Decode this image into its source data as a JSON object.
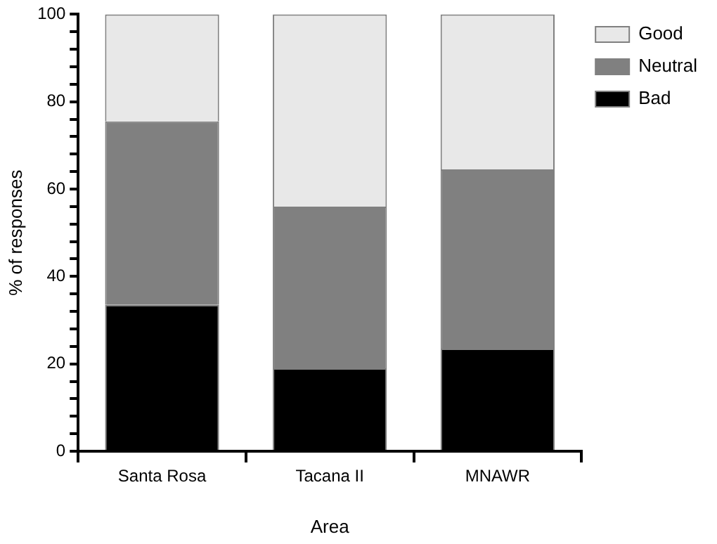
{
  "chart_data": {
    "type": "bar",
    "stacked": true,
    "xlabel": "Area",
    "ylabel": "% of responses",
    "categories": [
      "Santa Rosa",
      "Tacana II",
      "MNAWR"
    ],
    "series": [
      {
        "name": "Bad",
        "color": "#000000",
        "values": [
          33.5,
          19,
          23.5
        ]
      },
      {
        "name": "Neutral",
        "color": "#808080",
        "values": [
          42,
          37,
          41
        ]
      },
      {
        "name": "Good",
        "color": "#e8e8e8",
        "values": [
          24.5,
          44,
          35.5
        ]
      }
    ],
    "ylim": [
      0,
      100
    ],
    "yticks": [
      0,
      {
        "value": 4,
        "label": null
      },
      {
        "value": 8,
        "label": null
      },
      {
        "value": 12,
        "label": null
      },
      {
        "value": 16,
        "label": null
      },
      20,
      {
        "value": 24,
        "label": null
      },
      {
        "value": 28,
        "label": null
      },
      {
        "value": 32,
        "label": null
      },
      {
        "value": 36,
        "label": null
      },
      40,
      {
        "value": 44,
        "label": null
      },
      {
        "value": 48,
        "label": null
      },
      {
        "value": 52,
        "label": null
      },
      {
        "value": 56,
        "label": null
      },
      60,
      {
        "value": 64,
        "label": null
      },
      {
        "value": 68,
        "label": null
      },
      {
        "value": 72,
        "label": null
      },
      {
        "value": 76,
        "label": null
      },
      80,
      {
        "value": 84,
        "label": null
      },
      {
        "value": 88,
        "label": null
      },
      {
        "value": 92,
        "label": null
      },
      {
        "value": 96,
        "label": null
      },
      100
    ],
    "grid": false,
    "legend": "top right"
  }
}
